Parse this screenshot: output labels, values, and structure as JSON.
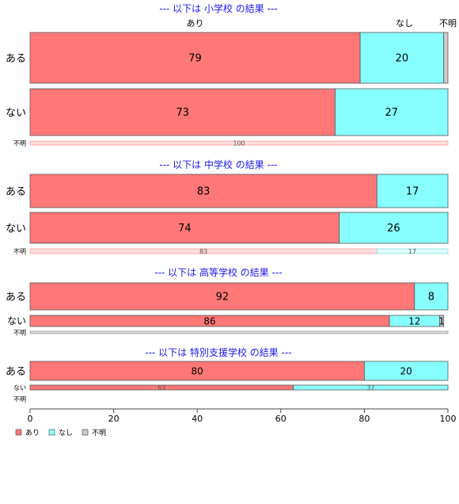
{
  "chart_data": {
    "type": "bar",
    "orientation": "horizontal",
    "stacked": true,
    "xlim": [
      0,
      100
    ],
    "x_ticks": [
      "0",
      "20",
      "40",
      "60",
      "80",
      "100"
    ],
    "column_headers": [
      "あり",
      "なし",
      "不明"
    ],
    "legend": {
      "placement": "bottom-left",
      "entries": [
        "あり",
        "なし",
        "不明"
      ]
    },
    "colors": {
      "あり": "#ff7777",
      "なし": "#88ffff",
      "不明": "#cccccc",
      "title": "#1a1aee"
    },
    "panels": [
      {
        "title": "--- 以下は 小学校 の結果 ---",
        "rows": [
          {
            "label": "ある",
            "values": [
              79,
              20,
              1
            ],
            "labels": [
              "79",
              "20",
              ""
            ]
          },
          {
            "label": "ない",
            "values": [
              73,
              27,
              0
            ],
            "labels": [
              "73",
              "27",
              ""
            ]
          },
          {
            "label": "不明",
            "values": [
              100,
              0,
              0
            ],
            "labels": [
              "100",
              "",
              ""
            ]
          }
        ]
      },
      {
        "title": "--- 以下は 中学校 の結果 ---",
        "rows": [
          {
            "label": "ある",
            "values": [
              83,
              17,
              0
            ],
            "labels": [
              "83",
              "17",
              ""
            ]
          },
          {
            "label": "ない",
            "values": [
              74,
              26,
              0
            ],
            "labels": [
              "74",
              "26",
              ""
            ]
          },
          {
            "label": "不明",
            "values": [
              83,
              17,
              0
            ],
            "labels": [
              "83",
              "17",
              ""
            ]
          }
        ]
      },
      {
        "title": "--- 以下は 高等学校 の結果 ---",
        "rows": [
          {
            "label": "ある",
            "values": [
              92,
              8,
              0
            ],
            "labels": [
              "92",
              "8",
              ""
            ]
          },
          {
            "label": "ない",
            "values": [
              86,
              12,
              1
            ],
            "labels": [
              "86",
              "12",
              "1"
            ]
          },
          {
            "label": "不明",
            "values": [
              0,
              0,
              100
            ],
            "labels": [
              "100",
              "",
              ""
            ]
          }
        ]
      },
      {
        "title": "--- 以下は 特別支援学校 の結果 ---",
        "rows": [
          {
            "label": "ある",
            "values": [
              80,
              20,
              0
            ],
            "labels": [
              "80",
              "20",
              ""
            ]
          },
          {
            "label": "ない",
            "values": [
              63,
              37,
              0
            ],
            "labels": [
              "63",
              "37",
              ""
            ]
          },
          {
            "label": "不明",
            "values": [
              0,
              0,
              0
            ],
            "labels": [
              "",
              "",
              ""
            ]
          }
        ]
      }
    ]
  }
}
